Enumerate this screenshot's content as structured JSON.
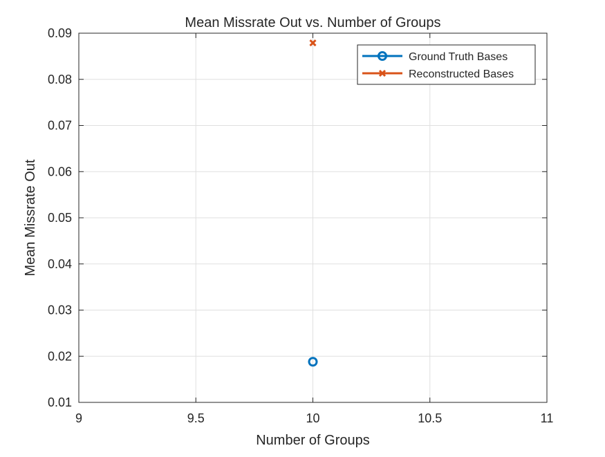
{
  "chart_data": {
    "type": "scatter",
    "title": "Mean Missrate Out vs. Number of Groups",
    "xlabel": "Number of Groups",
    "ylabel": "Mean Missrate Out",
    "xlim": [
      9,
      11
    ],
    "ylim": [
      0.01,
      0.09
    ],
    "xticks": [
      "9",
      "9.5",
      "10",
      "10.5",
      "11"
    ],
    "yticks": [
      "0.01",
      "0.02",
      "0.03",
      "0.04",
      "0.05",
      "0.06",
      "0.07",
      "0.08",
      "0.09"
    ],
    "grid": true,
    "legend_position": "top-right",
    "series": [
      {
        "name": "Ground Truth Bases",
        "marker": "circle",
        "color": "#0072BD",
        "x": [
          10
        ],
        "y": [
          0.0188
        ]
      },
      {
        "name": "Reconstructed Bases",
        "marker": "x",
        "color": "#D95319",
        "x": [
          10
        ],
        "y": [
          0.0879
        ]
      }
    ]
  }
}
